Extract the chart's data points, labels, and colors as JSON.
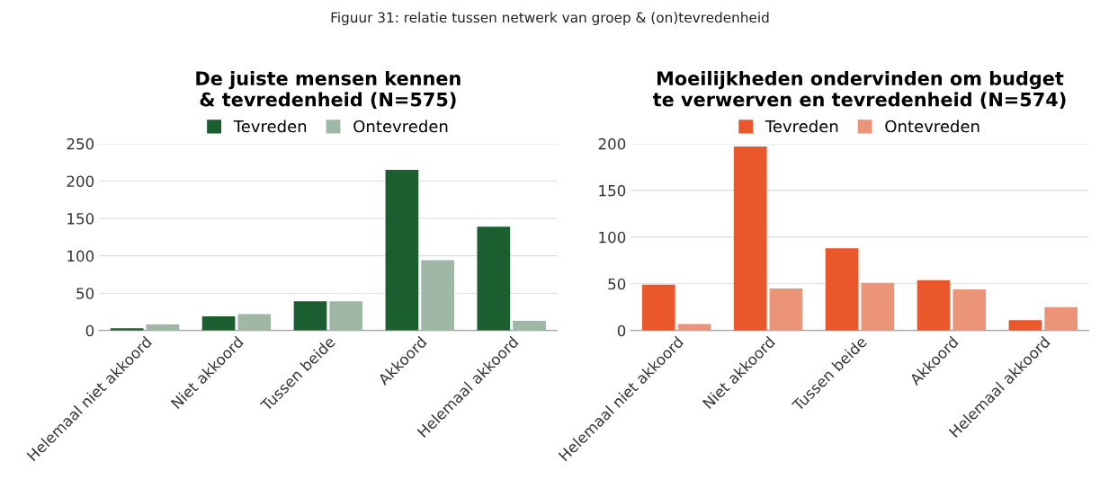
{
  "chart_data": [
    {
      "type": "bar",
      "title": "De juiste mensen kennen\n& tevredenheid (N=575)",
      "annotations": [
        "Figuur 31: relatie tussen netwerk van groep & (on)tevredenheid"
      ],
      "categories": [
        "Helemaal niet akkoord",
        "Niet akkoord",
        "Tussen beide",
        "Akkoord",
        "Helemaal akkoord"
      ],
      "series": [
        {
          "name": "Tevreden",
          "color": "#1b5e30",
          "values": [
            3,
            19,
            39,
            215,
            139
          ]
        },
        {
          "name": "Ontevreden",
          "color": "#9fb8a6",
          "values": [
            8,
            22,
            39,
            94,
            13
          ]
        }
      ],
      "ylim": [
        0,
        250
      ],
      "yticks": [
        0,
        50,
        100,
        150,
        200,
        250
      ],
      "grid": "y",
      "legend": "top"
    },
    {
      "type": "bar",
      "title": "Moeilijkheden ondervinden om budget\nte verwerven en tevredenheid (N=574)",
      "categories": [
        "Helemaal niet akkoord",
        "Niet akkoord",
        "Tussen beide",
        "Akkoord",
        "Helemaal akkoord"
      ],
      "series": [
        {
          "name": "Tevreden",
          "color": "#e9572b",
          "values": [
            49,
            197,
            88,
            54,
            11
          ]
        },
        {
          "name": "Ontevreden",
          "color": "#ec9478",
          "values": [
            7,
            45,
            51,
            44,
            25
          ]
        }
      ],
      "ylim": [
        0,
        200
      ],
      "yticks": [
        0,
        50,
        100,
        150,
        200
      ],
      "grid": "y",
      "legend": "top"
    }
  ]
}
